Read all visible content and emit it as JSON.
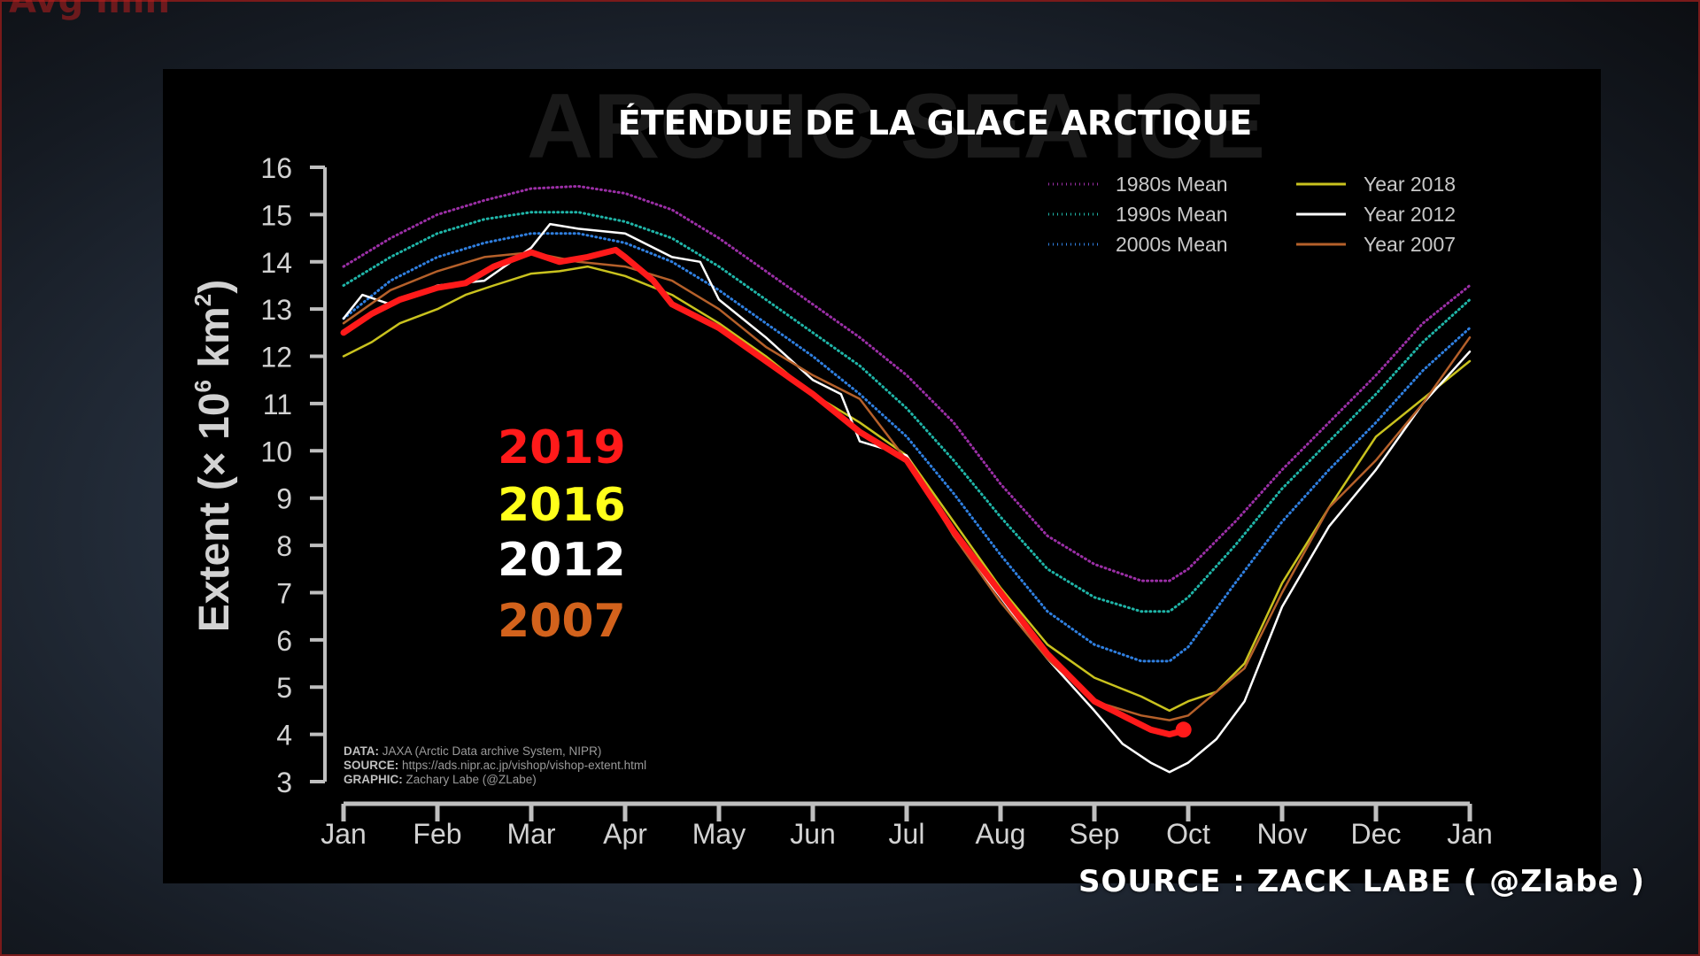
{
  "overlay": {
    "top_text": "Avg min",
    "source_credit": "SOURCE : ZACK LABE ( @Zlabe )"
  },
  "colors": {
    "m1980": "#9b2fa6",
    "m1990": "#1fb5a8",
    "m2000": "#2f7fe0",
    "y2018": "#c9c21e",
    "y2012": "#ffffff",
    "y2007": "#b5602a",
    "y2019": "#ff1a1a",
    "label2016": "#ffff1a",
    "label2007": "#d2621c",
    "axis": "#bfbfbf"
  },
  "chart_data": {
    "type": "line",
    "title": "ÉTENDUE DE LA GLACE ARCTIQUE",
    "ghost_title": "ARCTIC SEA ICE",
    "xlabel": "",
    "ylabel": "Extent (× 10⁶ km²)",
    "ylabel_parts": {
      "main": "Extent (× 10",
      "exp1": "6",
      "mid": " km",
      "exp2": "2",
      "end": ")"
    },
    "ylim": [
      3,
      16
    ],
    "yticks": [
      3,
      4,
      5,
      6,
      7,
      8,
      9,
      10,
      11,
      12,
      13,
      14,
      15,
      16
    ],
    "x_tick_labels": [
      "Jan",
      "Feb",
      "Mar",
      "Apr",
      "May",
      "Jun",
      "Jul",
      "Aug",
      "Sep",
      "Oct",
      "Nov",
      "Dec",
      "Jan"
    ],
    "x_unit": "month (0 = 1 Jan, 12 = 1 Jan next year)",
    "series": [
      {
        "name": "1980s Mean",
        "color_key": "m1980",
        "style": "dotted",
        "points": [
          [
            0,
            13.9
          ],
          [
            0.5,
            14.5
          ],
          [
            1,
            15.0
          ],
          [
            1.5,
            15.3
          ],
          [
            2,
            15.55
          ],
          [
            2.5,
            15.6
          ],
          [
            3,
            15.45
          ],
          [
            3.5,
            15.1
          ],
          [
            4,
            14.5
          ],
          [
            4.5,
            13.8
          ],
          [
            5,
            13.1
          ],
          [
            5.5,
            12.4
          ],
          [
            6,
            11.6
          ],
          [
            6.5,
            10.6
          ],
          [
            7,
            9.3
          ],
          [
            7.5,
            8.2
          ],
          [
            8,
            7.6
          ],
          [
            8.5,
            7.25
          ],
          [
            8.8,
            7.25
          ],
          [
            9,
            7.5
          ],
          [
            9.5,
            8.5
          ],
          [
            10,
            9.6
          ],
          [
            10.5,
            10.6
          ],
          [
            11,
            11.6
          ],
          [
            11.5,
            12.7
          ],
          [
            12,
            13.5
          ]
        ]
      },
      {
        "name": "1990s Mean",
        "color_key": "m1990",
        "style": "dotted",
        "points": [
          [
            0,
            13.5
          ],
          [
            0.5,
            14.1
          ],
          [
            1,
            14.6
          ],
          [
            1.5,
            14.9
          ],
          [
            2,
            15.05
          ],
          [
            2.5,
            15.05
          ],
          [
            3,
            14.85
          ],
          [
            3.5,
            14.5
          ],
          [
            4,
            13.9
          ],
          [
            4.5,
            13.2
          ],
          [
            5,
            12.5
          ],
          [
            5.5,
            11.8
          ],
          [
            6,
            10.9
          ],
          [
            6.5,
            9.8
          ],
          [
            7,
            8.6
          ],
          [
            7.5,
            7.5
          ],
          [
            8,
            6.9
          ],
          [
            8.5,
            6.6
          ],
          [
            8.8,
            6.6
          ],
          [
            9,
            6.9
          ],
          [
            9.5,
            8.0
          ],
          [
            10,
            9.2
          ],
          [
            10.5,
            10.2
          ],
          [
            11,
            11.2
          ],
          [
            11.5,
            12.3
          ],
          [
            12,
            13.2
          ]
        ]
      },
      {
        "name": "2000s Mean",
        "color_key": "m2000",
        "style": "dotted",
        "points": [
          [
            0,
            12.8
          ],
          [
            0.5,
            13.6
          ],
          [
            1,
            14.1
          ],
          [
            1.5,
            14.4
          ],
          [
            2,
            14.6
          ],
          [
            2.5,
            14.6
          ],
          [
            3,
            14.4
          ],
          [
            3.5,
            14.0
          ],
          [
            4,
            13.4
          ],
          [
            4.5,
            12.7
          ],
          [
            5,
            12.0
          ],
          [
            5.5,
            11.2
          ],
          [
            6,
            10.3
          ],
          [
            6.5,
            9.1
          ],
          [
            7,
            7.8
          ],
          [
            7.5,
            6.6
          ],
          [
            8,
            5.9
          ],
          [
            8.5,
            5.55
          ],
          [
            8.8,
            5.55
          ],
          [
            9,
            5.85
          ],
          [
            9.5,
            7.2
          ],
          [
            10,
            8.5
          ],
          [
            10.5,
            9.6
          ],
          [
            11,
            10.6
          ],
          [
            11.5,
            11.7
          ],
          [
            12,
            12.6
          ]
        ]
      },
      {
        "name": "Year 2018",
        "color_key": "y2018",
        "style": "solid",
        "points": [
          [
            0,
            12.0
          ],
          [
            0.3,
            12.3
          ],
          [
            0.6,
            12.7
          ],
          [
            1,
            13.0
          ],
          [
            1.3,
            13.3
          ],
          [
            1.6,
            13.5
          ],
          [
            2,
            13.75
          ],
          [
            2.3,
            13.8
          ],
          [
            2.6,
            13.9
          ],
          [
            3,
            13.7
          ],
          [
            3.5,
            13.3
          ],
          [
            4,
            12.7
          ],
          [
            4.5,
            12.0
          ],
          [
            5,
            11.2
          ],
          [
            5.5,
            10.6
          ],
          [
            6,
            9.9
          ],
          [
            6.5,
            8.5
          ],
          [
            7,
            7.1
          ],
          [
            7.5,
            5.9
          ],
          [
            8,
            5.2
          ],
          [
            8.5,
            4.8
          ],
          [
            8.8,
            4.5
          ],
          [
            9,
            4.7
          ],
          [
            9.3,
            4.9
          ],
          [
            9.6,
            5.5
          ],
          [
            10,
            7.2
          ],
          [
            10.5,
            8.8
          ],
          [
            11,
            10.3
          ],
          [
            11.5,
            11.1
          ],
          [
            12,
            11.9
          ]
        ]
      },
      {
        "name": "Year 2012",
        "color_key": "y2012",
        "style": "solid",
        "points": [
          [
            0,
            12.8
          ],
          [
            0.2,
            13.3
          ],
          [
            0.5,
            13.1
          ],
          [
            1,
            13.5
          ],
          [
            1.5,
            13.6
          ],
          [
            2,
            14.3
          ],
          [
            2.2,
            14.8
          ],
          [
            2.5,
            14.7
          ],
          [
            3,
            14.6
          ],
          [
            3.5,
            14.1
          ],
          [
            3.8,
            14.0
          ],
          [
            4,
            13.2
          ],
          [
            4.5,
            12.4
          ],
          [
            5,
            11.5
          ],
          [
            5.3,
            11.2
          ],
          [
            5.5,
            10.2
          ],
          [
            6,
            9.9
          ],
          [
            6.5,
            8.2
          ],
          [
            7,
            6.9
          ],
          [
            7.5,
            5.6
          ],
          [
            8,
            4.5
          ],
          [
            8.3,
            3.8
          ],
          [
            8.6,
            3.4
          ],
          [
            8.8,
            3.2
          ],
          [
            9,
            3.4
          ],
          [
            9.3,
            3.9
          ],
          [
            9.6,
            4.7
          ],
          [
            10,
            6.7
          ],
          [
            10.5,
            8.4
          ],
          [
            11,
            9.6
          ],
          [
            11.5,
            11.0
          ],
          [
            12,
            12.1
          ]
        ]
      },
      {
        "name": "Year 2007",
        "color_key": "y2007",
        "style": "solid",
        "points": [
          [
            0,
            12.7
          ],
          [
            0.5,
            13.4
          ],
          [
            1,
            13.8
          ],
          [
            1.5,
            14.1
          ],
          [
            2,
            14.2
          ],
          [
            2.5,
            14.0
          ],
          [
            3,
            13.9
          ],
          [
            3.5,
            13.6
          ],
          [
            4,
            13.0
          ],
          [
            4.5,
            12.2
          ],
          [
            5,
            11.6
          ],
          [
            5.5,
            11.1
          ],
          [
            6,
            9.8
          ],
          [
            6.5,
            8.2
          ],
          [
            7,
            6.8
          ],
          [
            7.5,
            5.6
          ],
          [
            8,
            4.7
          ],
          [
            8.5,
            4.4
          ],
          [
            8.8,
            4.3
          ],
          [
            9,
            4.4
          ],
          [
            9.3,
            4.9
          ],
          [
            9.6,
            5.4
          ],
          [
            10,
            7.0
          ],
          [
            10.5,
            8.8
          ],
          [
            11,
            9.8
          ],
          [
            11.5,
            11.0
          ],
          [
            12,
            12.4
          ]
        ]
      }
    ],
    "series_bold": {
      "name": "2019",
      "color_key": "y2019",
      "points": [
        [
          0,
          12.5
        ],
        [
          0.3,
          12.9
        ],
        [
          0.6,
          13.2
        ],
        [
          1,
          13.45
        ],
        [
          1.3,
          13.55
        ],
        [
          1.6,
          13.9
        ],
        [
          2,
          14.2
        ],
        [
          2.3,
          14.0
        ],
        [
          2.6,
          14.1
        ],
        [
          2.9,
          14.25
        ],
        [
          3,
          14.1
        ],
        [
          3.3,
          13.6
        ],
        [
          3.5,
          13.1
        ],
        [
          4,
          12.6
        ],
        [
          4.5,
          11.9
        ],
        [
          5,
          11.2
        ],
        [
          5.5,
          10.4
        ],
        [
          6,
          9.8
        ],
        [
          6.5,
          8.3
        ],
        [
          7,
          7.0
        ],
        [
          7.5,
          5.7
        ],
        [
          8,
          4.7
        ],
        [
          8.3,
          4.4
        ],
        [
          8.6,
          4.1
        ],
        [
          8.8,
          4.0
        ],
        [
          8.9,
          4.05
        ],
        [
          8.95,
          4.1
        ]
      ]
    },
    "legend": [
      {
        "label": "1980s Mean",
        "color_key": "m1980",
        "style": "dotted"
      },
      {
        "label": "1990s Mean",
        "color_key": "m1990",
        "style": "dotted"
      },
      {
        "label": "2000s Mean",
        "color_key": "m2000",
        "style": "dotted"
      },
      {
        "label": "Year 2018",
        "color_key": "y2018",
        "style": "solid"
      },
      {
        "label": "Year 2012",
        "color_key": "y2012",
        "style": "solid"
      },
      {
        "label": "Year 2007",
        "color_key": "y2007",
        "style": "solid"
      }
    ],
    "legend_position": "top-right",
    "year_labels": [
      {
        "text": "2019",
        "color_key": "y2019"
      },
      {
        "text": "2016",
        "color_key": "label2016"
      },
      {
        "text": "2012",
        "color_key": "y2012"
      },
      {
        "text": "2007",
        "color_key": "label2007"
      }
    ],
    "notes": [
      {
        "label": "DATA:",
        "text": "JAXA (Arctic Data archive System, NIPR)"
      },
      {
        "label": "SOURCE:",
        "text": "https://ads.nipr.ac.jp/vishop/vishop-extent.html"
      },
      {
        "label": "GRAPHIC:",
        "text": "Zachary Labe (@ZLabe)"
      }
    ],
    "grid": false
  }
}
